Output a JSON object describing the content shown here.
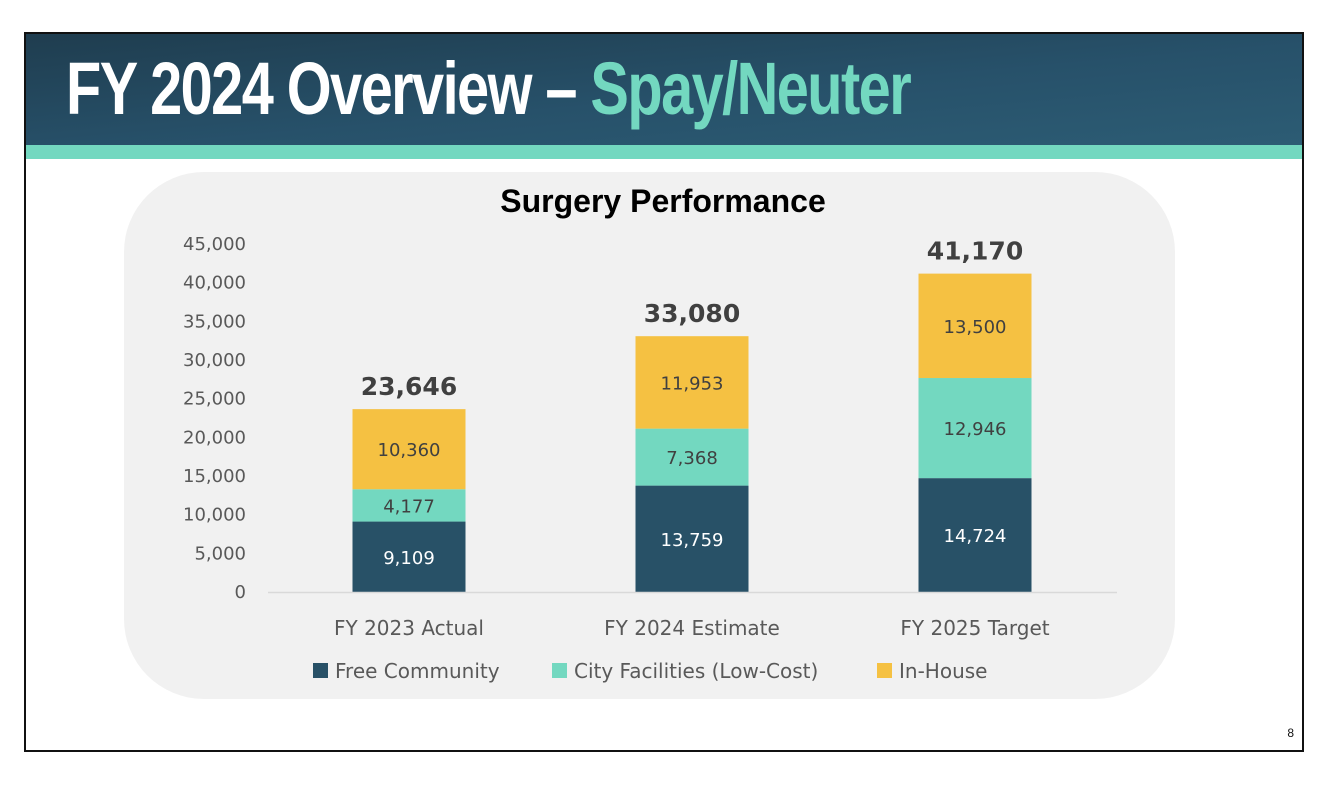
{
  "slide": {
    "title_main": "FY 2024 Overview – ",
    "title_accent": "Spay/Neuter",
    "page_number": "8"
  },
  "colors": {
    "header_dark": "#234658",
    "accent_teal": "#73d8c0",
    "panel_bg": "#f1f1f1"
  },
  "chart_data": {
    "type": "bar",
    "stacked": true,
    "title": "Surgery Performance",
    "xlabel": "",
    "ylabel": "",
    "categories": [
      "FY 2023 Actual",
      "FY 2024 Estimate",
      "FY 2025 Target"
    ],
    "series": [
      {
        "name": "Free Community",
        "color": "#285167",
        "label_color": "#ffffff",
        "values": [
          9109,
          13759,
          14724
        ],
        "labels": [
          "9,109",
          "13,759",
          "14,724"
        ]
      },
      {
        "name": "City Facilities (Low-Cost)",
        "color": "#73d8c0",
        "label_color": "#404040",
        "values": [
          4177,
          7368,
          12946
        ],
        "labels": [
          "4,177",
          "7,368",
          "12,946"
        ]
      },
      {
        "name": "In-House",
        "color": "#f5c142",
        "label_color": "#404040",
        "values": [
          10360,
          11953,
          13500
        ],
        "labels": [
          "10,360",
          "11,953",
          "13,500"
        ]
      }
    ],
    "totals": [
      23646,
      33080,
      41170
    ],
    "total_labels": [
      "23,646",
      "33,080",
      "41,170"
    ],
    "ylim": [
      0,
      45000
    ],
    "yticks": [
      0,
      5000,
      10000,
      15000,
      20000,
      25000,
      30000,
      35000,
      40000,
      45000
    ],
    "ytick_labels": [
      "0",
      "5,000",
      "10,000",
      "15,000",
      "20,000",
      "25,000",
      "30,000",
      "35,000",
      "40,000",
      "45,000"
    ],
    "grid": false,
    "legend_position": "bottom"
  }
}
